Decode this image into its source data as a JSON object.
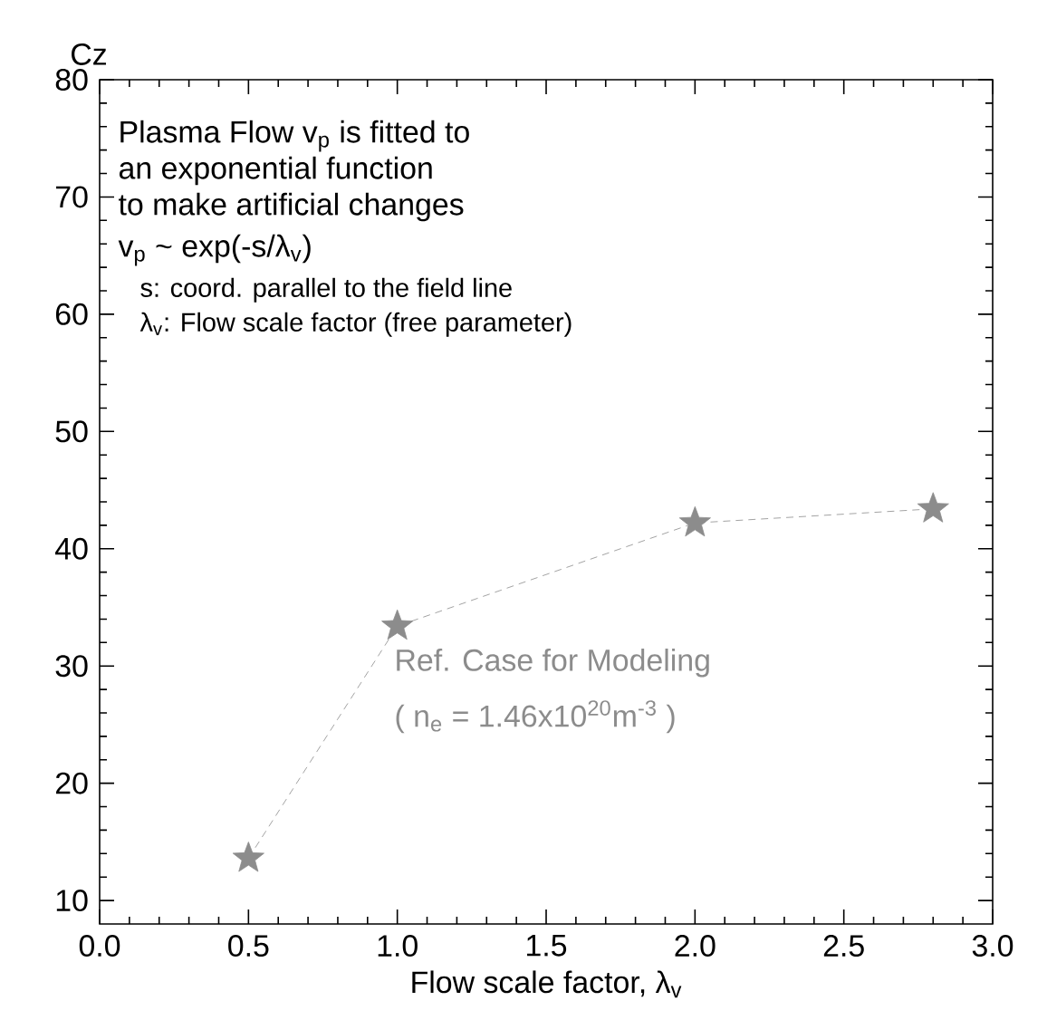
{
  "chart_data": {
    "type": "line",
    "xlabel": "Flow scale factor, λ$_{v}$",
    "ylabel": "Cz",
    "x": [
      0.5,
      1.0,
      2.0,
      2.8
    ],
    "series": [
      {
        "color": "#8c8c8c",
        "values": [
          13.6,
          33.4,
          42.2,
          43.4
        ]
      }
    ],
    "marker": "star",
    "line_style": "dashed",
    "grid": false,
    "xlim": [
      0.0,
      3.0
    ],
    "xticks": [
      {
        "value": 0,
        "label": "0.0"
      },
      0.5,
      {
        "value": 1,
        "label": "1.0"
      },
      1.5,
      {
        "value": 2,
        "label": "2.0"
      },
      2.5,
      {
        "value": 3,
        "label": "3.0"
      }
    ],
    "ylim": [
      8,
      80
    ],
    "yticks": [
      10,
      20,
      30,
      40,
      50,
      60,
      70,
      80
    ],
    "annotations": [
      "Plasma Flow v$_{p}$ is fitted to",
      "an exponential function",
      "to make artificial changes",
      "v$_{p}$ ~ exp(-s/λ$_{v}$)",
      "s: coord. parallel to the field line",
      "λ$_{v}$: Flow scale factor (free parameter)",
      {
        "text": "Ref. Case for Modeling",
        "x": 1.0,
        "y": 33.4
      },
      "( n$_{e}$ = 1.46x10$^{20}$m$^{-3}$ )"
    ]
  }
}
